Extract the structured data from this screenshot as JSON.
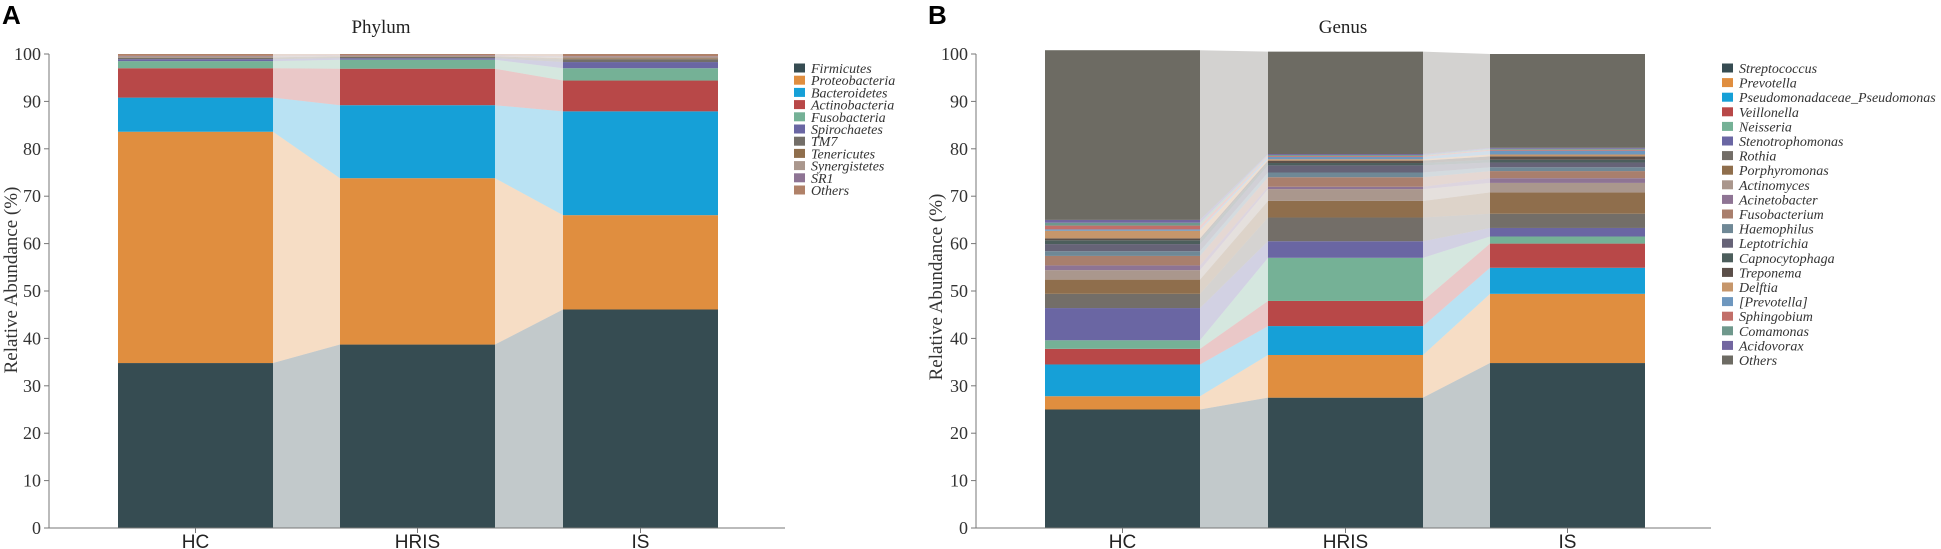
{
  "chart_data": [
    {
      "type": "bar",
      "stacked": true,
      "panel": "A",
      "title": "Phylum",
      "ylabel": "Relative Abundance (%)",
      "ylim": [
        0,
        100
      ],
      "yticks": [
        "0",
        "10",
        "20",
        "30",
        "40",
        "50",
        "60",
        "70",
        "80",
        "90",
        "100"
      ],
      "categories": [
        "HC",
        "HRIS",
        "IS"
      ],
      "series": [
        {
          "name": "Firmicutes",
          "color": "#364c52",
          "values": [
            34.8,
            38.7,
            46.1
          ]
        },
        {
          "name": "Proteobacteria",
          "color": "#e08e3f",
          "values": [
            48.8,
            35.1,
            19.9
          ]
        },
        {
          "name": "Bacteroidetes",
          "color": "#16a0d7",
          "values": [
            7.2,
            15.4,
            21.9
          ]
        },
        {
          "name": "Actinobacteria",
          "color": "#b84848",
          "values": [
            6.2,
            7.7,
            6.5
          ]
        },
        {
          "name": "Fusobacteria",
          "color": "#75b196",
          "values": [
            1.5,
            1.9,
            2.6
          ]
        },
        {
          "name": "Spirochaetes",
          "color": "#6a66a3",
          "values": [
            0.4,
            0.3,
            1.3
          ]
        },
        {
          "name": "TM7",
          "color": "#736e68",
          "values": [
            0.3,
            0.3,
            0.6
          ]
        },
        {
          "name": "Tenericutes",
          "color": "#8f6e4c",
          "values": [
            0.1,
            0.1,
            0.2
          ]
        },
        {
          "name": "Synergistetes",
          "color": "#aa978d",
          "values": [
            0.2,
            0.1,
            0.3
          ]
        },
        {
          "name": "SR1",
          "color": "#8e7494",
          "values": [
            0.1,
            0.1,
            0.1
          ]
        },
        {
          "name": "Others",
          "color": "#b08168",
          "values": [
            0.4,
            0.3,
            0.5
          ]
        }
      ]
    },
    {
      "type": "bar",
      "stacked": true,
      "panel": "B",
      "title": "Genus",
      "ylabel": "Relative Abundance (%)",
      "ylim": [
        0,
        100
      ],
      "yticks": [
        "0",
        "10",
        "20",
        "30",
        "40",
        "50",
        "60",
        "70",
        "80",
        "90",
        "100"
      ],
      "categories": [
        "HC",
        "HRIS",
        "IS"
      ],
      "series": [
        {
          "name": "Streptococcus",
          "color": "#364c52",
          "values": [
            25.0,
            27.5,
            34.8
          ]
        },
        {
          "name": "Prevotella",
          "color": "#e08e3f",
          "values": [
            2.8,
            9.0,
            14.6
          ]
        },
        {
          "name": "Pseudomonadaceae_Pseudomonas",
          "color": "#16a0d7",
          "values": [
            6.7,
            6.1,
            5.5
          ]
        },
        {
          "name": "Veillonella",
          "color": "#b84848",
          "values": [
            3.3,
            5.3,
            5.1
          ]
        },
        {
          "name": "Neisseria",
          "color": "#75b196",
          "values": [
            1.8,
            9.1,
            1.5
          ]
        },
        {
          "name": "Stenotrophomonas",
          "color": "#6a66a3",
          "values": [
            6.8,
            3.5,
            1.8
          ]
        },
        {
          "name": "Rothia",
          "color": "#736e68",
          "values": [
            3.0,
            5.0,
            3.0
          ]
        },
        {
          "name": "Porphyromonas",
          "color": "#8f6e4c",
          "values": [
            3.0,
            3.5,
            4.5
          ]
        },
        {
          "name": "Actinomyces",
          "color": "#aa978d",
          "values": [
            2.0,
            2.5,
            2.0
          ]
        },
        {
          "name": "Acinetobacter",
          "color": "#8e7494",
          "values": [
            1.0,
            0.5,
            1.0
          ]
        },
        {
          "name": "Fusobacterium",
          "color": "#a97f6d",
          "values": [
            2.0,
            2.0,
            1.5
          ]
        },
        {
          "name": "Haemophilus",
          "color": "#6f8896",
          "values": [
            1.0,
            1.0,
            0.8
          ]
        },
        {
          "name": "Leptotrichia",
          "color": "#666377",
          "values": [
            1.5,
            1.5,
            1.0
          ]
        },
        {
          "name": "Capnocytophaga",
          "color": "#4c5e5c",
          "values": [
            0.8,
            0.5,
            0.6
          ]
        },
        {
          "name": "Treponema",
          "color": "#5b4f49",
          "values": [
            0.4,
            0.5,
            0.7
          ]
        },
        {
          "name": "Delftia",
          "color": "#c6966b",
          "values": [
            1.6,
            0.3,
            0.4
          ]
        },
        {
          "name": "[Prevotella]",
          "color": "#6e97be",
          "values": [
            0.3,
            0.5,
            0.8
          ]
        },
        {
          "name": "Sphingobium",
          "color": "#c26f69",
          "values": [
            0.8,
            0.2,
            0.2
          ]
        },
        {
          "name": "Comamonas",
          "color": "#6f988c",
          "values": [
            0.6,
            0.2,
            0.2
          ]
        },
        {
          "name": "Acidovorax",
          "color": "#7266a0",
          "values": [
            0.6,
            0.2,
            0.2
          ]
        },
        {
          "name": "Others",
          "color": "#6d6b63",
          "values": [
            35.8,
            21.6,
            19.8
          ]
        }
      ]
    }
  ]
}
